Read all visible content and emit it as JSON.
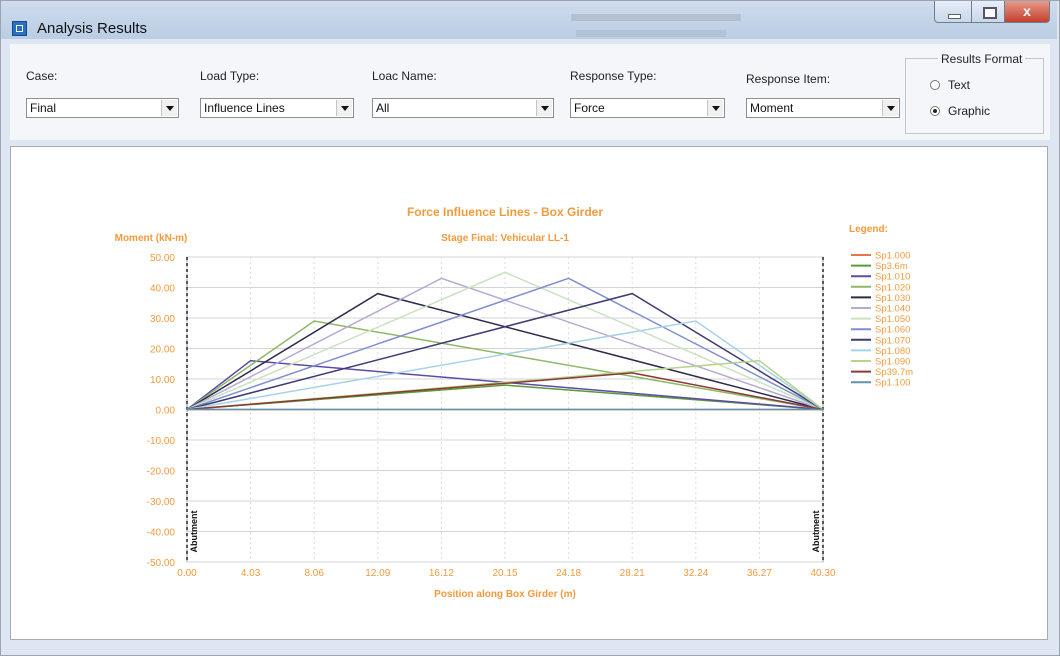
{
  "window": {
    "title": "Analysis Results",
    "close_glyph": "x"
  },
  "toolbar": {
    "case": {
      "label": "Case:",
      "value": "Final"
    },
    "load_type": {
      "label": "Load Type:",
      "value": "Influence Lines"
    },
    "load_name": {
      "label": "Loac Name:",
      "value": "All"
    },
    "response_type": {
      "label": "Response Type:",
      "value": "Force"
    },
    "response_item": {
      "label": "Response Item:",
      "value": "Moment"
    },
    "results_format": {
      "title": "Results Format",
      "options": [
        "Text",
        "Graphic"
      ],
      "selected": "Graphic"
    }
  },
  "colors": {
    "chart_text": "#f39a3c",
    "plot_border": "#9a9a9a"
  },
  "chart_data": {
    "type": "line",
    "title": "Force Influence Lines - Box Girder",
    "subtitle": "Stage Final: Vehicular LL-1",
    "xlabel": "Position along Box Girder (m)",
    "ylabel": "Moment (kN-m)",
    "xlim": [
      0.0,
      40.3
    ],
    "ylim": [
      -50.0,
      50.0
    ],
    "xticks": [
      "0.00",
      "4.03",
      "8.06",
      "12.09",
      "16.12",
      "20.15",
      "24.18",
      "28.21",
      "32.24",
      "36.27",
      "40.30"
    ],
    "yticks": [
      "50.00",
      "40.00",
      "30.00",
      "20.00",
      "10.00",
      "0.00",
      "-10.00",
      "-20.00",
      "-30.00",
      "-40.00",
      "-50.00"
    ],
    "grid": true,
    "legend_title": "Legend:",
    "legend_position": "right",
    "support_labels": [
      "Abutment",
      "Abutment"
    ],
    "series": [
      {
        "name": "Sp1.000",
        "color": "#e8774b",
        "x": [
          0,
          40.3
        ],
        "y": [
          0,
          0
        ]
      },
      {
        "name": "Sp3.6m",
        "color": "#5a9a37",
        "x": [
          0,
          20.15,
          40.3
        ],
        "y": [
          0,
          8,
          0
        ]
      },
      {
        "name": "Sp1.010",
        "color": "#5e4aa8",
        "x": [
          0,
          4.03,
          40.3
        ],
        "y": [
          0,
          16,
          0
        ]
      },
      {
        "name": "Sp1.020",
        "color": "#8eb865",
        "x": [
          0,
          8.06,
          40.3
        ],
        "y": [
          0,
          29,
          0
        ]
      },
      {
        "name": "Sp1.030",
        "color": "#2c2a4a",
        "x": [
          0,
          12.09,
          40.3
        ],
        "y": [
          0,
          38,
          0
        ]
      },
      {
        "name": "Sp1.040",
        "color": "#b7a9d4",
        "x": [
          0,
          16.12,
          40.3
        ],
        "y": [
          0,
          43,
          0
        ]
      },
      {
        "name": "Sp1.050",
        "color": "#c9e3c0",
        "x": [
          0,
          20.15,
          40.3
        ],
        "y": [
          0,
          45,
          0
        ]
      },
      {
        "name": "Sp1.060",
        "color": "#7d8fd0",
        "x": [
          0,
          24.18,
          40.3
        ],
        "y": [
          0,
          43,
          0
        ]
      },
      {
        "name": "Sp1.070",
        "color": "#3f3a72",
        "x": [
          0,
          28.21,
          40.3
        ],
        "y": [
          0,
          38,
          0
        ]
      },
      {
        "name": "Sp1.080",
        "color": "#a8d2e8",
        "x": [
          0,
          32.24,
          40.3
        ],
        "y": [
          0,
          29,
          0
        ]
      },
      {
        "name": "Sp1.090",
        "color": "#b6d48a",
        "x": [
          0,
          36.27,
          40.3
        ],
        "y": [
          0,
          16,
          0
        ]
      },
      {
        "name": "Sp39.7m",
        "color": "#8a3a36",
        "x": [
          0,
          28.21,
          40.3
        ],
        "y": [
          0,
          12,
          0
        ]
      },
      {
        "name": "Sp1.100",
        "color": "#5e93b0",
        "x": [
          0,
          40.3
        ],
        "y": [
          0,
          0
        ]
      }
    ]
  }
}
